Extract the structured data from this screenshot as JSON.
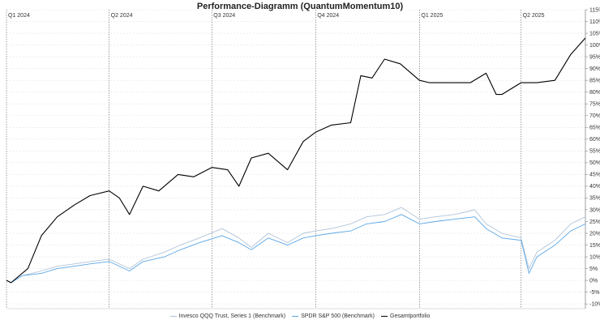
{
  "chart_data": {
    "type": "line",
    "title": "Performance-Diagramm (QuantumMomentum10)",
    "ylim": [
      -12,
      115
    ],
    "y_ticks": [
      "-10%",
      "-5%",
      "0%",
      "5%",
      "10%",
      "15%",
      "20%",
      "25%",
      "30%",
      "35%",
      "40%",
      "45%",
      "50%",
      "55%",
      "60%",
      "65%",
      "70%",
      "75%",
      "80%",
      "85%",
      "90%",
      "95%",
      "100%",
      "105%",
      "110%",
      "115%"
    ],
    "y_tick_values": [
      -10,
      -5,
      0,
      5,
      10,
      15,
      20,
      25,
      30,
      35,
      40,
      45,
      50,
      55,
      60,
      65,
      70,
      75,
      80,
      85,
      90,
      95,
      100,
      105,
      110,
      115
    ],
    "x_range": [
      "2024-01-01",
      "2025-05-28"
    ],
    "quarter_markers": [
      {
        "label": "Q1 2024",
        "date": "2024-01-01"
      },
      {
        "label": "Q2 2024",
        "date": "2024-04-01"
      },
      {
        "label": "Q3 2024",
        "date": "2024-07-01"
      },
      {
        "label": "Q4 2024",
        "date": "2024-10-01"
      },
      {
        "label": "Q1 2025",
        "date": "2025-01-01"
      },
      {
        "label": "Q2 2025",
        "date": "2025-04-01"
      }
    ],
    "grid": true,
    "legend_position": "bottom",
    "series": [
      {
        "name": "Invesco QQQ Trust, Series 1 (Benchmark)",
        "color": "#b0c4d8",
        "x": [
          "2024-01-01",
          "2024-01-05",
          "2024-01-15",
          "2024-02-01",
          "2024-02-15",
          "2024-03-01",
          "2024-03-15",
          "2024-04-01",
          "2024-04-19",
          "2024-05-01",
          "2024-05-20",
          "2024-06-03",
          "2024-06-20",
          "2024-07-10",
          "2024-07-25",
          "2024-08-05",
          "2024-08-20",
          "2024-09-06",
          "2024-09-20",
          "2024-10-01",
          "2024-10-15",
          "2024-11-01",
          "2024-11-15",
          "2024-12-01",
          "2024-12-16",
          "2025-01-01",
          "2025-01-15",
          "2025-02-01",
          "2025-02-19",
          "2025-03-01",
          "2025-03-15",
          "2025-04-01",
          "2025-04-08",
          "2025-04-15",
          "2025-05-01",
          "2025-05-15",
          "2025-05-28"
        ],
        "values": [
          0,
          -1,
          2,
          4,
          6,
          7,
          8,
          9,
          5,
          9,
          12,
          15,
          18,
          22,
          18,
          14,
          20,
          16,
          20,
          21,
          22,
          24,
          27,
          28,
          31,
          26,
          27,
          28,
          30,
          24,
          20,
          18,
          5,
          12,
          17,
          24,
          27
        ]
      },
      {
        "name": "SPDR S&P 500 (Benchmark)",
        "color": "#5aa6e6",
        "x": [
          "2024-01-01",
          "2024-01-05",
          "2024-01-15",
          "2024-02-01",
          "2024-02-15",
          "2024-03-01",
          "2024-03-15",
          "2024-04-01",
          "2024-04-19",
          "2024-05-01",
          "2024-05-20",
          "2024-06-03",
          "2024-06-20",
          "2024-07-10",
          "2024-07-25",
          "2024-08-05",
          "2024-08-20",
          "2024-09-06",
          "2024-09-20",
          "2024-10-01",
          "2024-10-15",
          "2024-11-01",
          "2024-11-15",
          "2024-12-01",
          "2024-12-16",
          "2025-01-01",
          "2025-01-15",
          "2025-02-01",
          "2025-02-19",
          "2025-03-01",
          "2025-03-15",
          "2025-04-01",
          "2025-04-08",
          "2025-04-15",
          "2025-05-01",
          "2025-05-15",
          "2025-05-28"
        ],
        "values": [
          0,
          -1,
          2,
          3,
          5,
          6,
          7,
          8,
          4,
          8,
          10,
          13,
          16,
          19,
          16,
          13,
          18,
          15,
          18,
          19,
          20,
          21,
          24,
          25,
          28,
          24,
          25,
          26,
          27,
          22,
          18,
          17,
          3,
          10,
          15,
          21,
          24
        ]
      },
      {
        "name": "Gesamtportfolio",
        "color": "#000000",
        "x": [
          "2024-01-01",
          "2024-01-05",
          "2024-01-20",
          "2024-02-01",
          "2024-02-15",
          "2024-03-01",
          "2024-03-15",
          "2024-04-01",
          "2024-04-10",
          "2024-04-19",
          "2024-05-01",
          "2024-05-15",
          "2024-06-01",
          "2024-06-15",
          "2024-07-01",
          "2024-07-15",
          "2024-07-25",
          "2024-08-05",
          "2024-08-20",
          "2024-09-06",
          "2024-09-20",
          "2024-10-01",
          "2024-10-15",
          "2024-11-01",
          "2024-11-10",
          "2024-11-20",
          "2024-12-01",
          "2024-12-15",
          "2025-01-01",
          "2025-01-10",
          "2025-02-01",
          "2025-02-15",
          "2025-03-01",
          "2025-03-10",
          "2025-03-15",
          "2025-04-01",
          "2025-04-15",
          "2025-05-01",
          "2025-05-15",
          "2025-05-28"
        ],
        "values": [
          0,
          -1,
          5,
          19,
          27,
          32,
          36,
          38,
          35,
          28,
          40,
          38,
          45,
          44,
          48,
          47,
          40,
          52,
          54,
          47,
          59,
          63,
          66,
          67,
          87,
          86,
          94,
          92,
          85,
          84,
          84,
          84,
          88,
          79,
          79,
          84,
          84,
          85,
          96,
          103
        ]
      }
    ]
  }
}
